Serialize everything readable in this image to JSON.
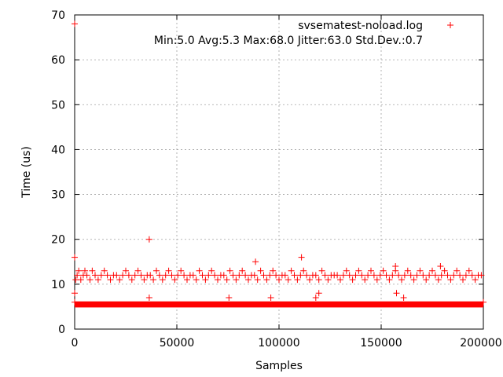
{
  "chart_data": {
    "type": "scatter",
    "xlabel": "Samples",
    "ylabel": "Time (us)",
    "xlim": [
      0,
      200000
    ],
    "ylim": [
      0,
      70
    ],
    "x_ticks": [
      0,
      50000,
      100000,
      150000,
      200000
    ],
    "x_tick_labels": [
      "0",
      "50000",
      "100000",
      "150000",
      "200000"
    ],
    "y_ticks": [
      0,
      10,
      20,
      30,
      40,
      50,
      60,
      70
    ],
    "y_tick_labels": [
      "0",
      "10",
      "20",
      "30",
      "40",
      "50",
      "60",
      "70"
    ],
    "grid": true,
    "legend_position": "top-right",
    "annotation": "Min:5.0 Avg:5.3 Max:68.0 Jitter:63.0 Std.Dev.:0.7",
    "series": [
      {
        "name": "svsematest-noload.log",
        "color": "#ff0000",
        "marker": "plus",
        "dense_band": {
          "x_range": [
            0,
            200000
          ],
          "y_range": [
            5,
            6
          ]
        },
        "cluster_points": [
          [
            500,
            11
          ],
          [
            1200,
            12
          ],
          [
            2000,
            13
          ],
          [
            3000,
            11
          ],
          [
            4200,
            12
          ],
          [
            5000,
            13
          ],
          [
            6000,
            12
          ],
          [
            7500,
            11
          ],
          [
            8600,
            13
          ],
          [
            10000,
            12
          ],
          [
            11500,
            11
          ],
          [
            13000,
            12
          ],
          [
            14500,
            13
          ],
          [
            16000,
            12
          ],
          [
            17500,
            11
          ],
          [
            19000,
            12
          ],
          [
            20500,
            12
          ],
          [
            22000,
            11
          ],
          [
            23500,
            12
          ],
          [
            25000,
            13
          ],
          [
            26500,
            12
          ],
          [
            28000,
            11
          ],
          [
            29500,
            12
          ],
          [
            31000,
            13
          ],
          [
            32500,
            12
          ],
          [
            34000,
            11
          ],
          [
            35500,
            12
          ],
          [
            37000,
            12
          ],
          [
            38500,
            11
          ],
          [
            40000,
            13
          ],
          [
            41500,
            12
          ],
          [
            43000,
            11
          ],
          [
            44500,
            12
          ],
          [
            46000,
            13
          ],
          [
            47500,
            12
          ],
          [
            49000,
            11
          ],
          [
            50500,
            12
          ],
          [
            52000,
            13
          ],
          [
            53500,
            12
          ],
          [
            55000,
            11
          ],
          [
            56500,
            12
          ],
          [
            58000,
            12
          ],
          [
            59500,
            11
          ],
          [
            61000,
            13
          ],
          [
            62500,
            12
          ],
          [
            64000,
            11
          ],
          [
            65500,
            12
          ],
          [
            67000,
            13
          ],
          [
            68500,
            12
          ],
          [
            70000,
            11
          ],
          [
            71500,
            12
          ],
          [
            73000,
            12
          ],
          [
            74500,
            11
          ],
          [
            76000,
            13
          ],
          [
            77500,
            12
          ],
          [
            79000,
            11
          ],
          [
            80500,
            12
          ],
          [
            82000,
            13
          ],
          [
            83500,
            12
          ],
          [
            85000,
            11
          ],
          [
            86500,
            12
          ],
          [
            88000,
            12
          ],
          [
            89500,
            11
          ],
          [
            91000,
            13
          ],
          [
            92500,
            12
          ],
          [
            94000,
            11
          ],
          [
            95500,
            12
          ],
          [
            97000,
            13
          ],
          [
            98500,
            12
          ],
          [
            100000,
            11
          ],
          [
            101500,
            12
          ],
          [
            103000,
            12
          ],
          [
            104500,
            11
          ],
          [
            106000,
            13
          ],
          [
            107500,
            12
          ],
          [
            109000,
            11
          ],
          [
            110500,
            12
          ],
          [
            112000,
            13
          ],
          [
            113500,
            12
          ],
          [
            115000,
            11
          ],
          [
            116500,
            12
          ],
          [
            118000,
            12
          ],
          [
            119500,
            11
          ],
          [
            121000,
            13
          ],
          [
            122500,
            12
          ],
          [
            124000,
            11
          ],
          [
            125500,
            12
          ],
          [
            127000,
            12
          ],
          [
            128500,
            12
          ],
          [
            130000,
            11
          ],
          [
            131500,
            12
          ],
          [
            133000,
            13
          ],
          [
            134500,
            12
          ],
          [
            136000,
            11
          ],
          [
            137500,
            12
          ],
          [
            139000,
            13
          ],
          [
            140500,
            12
          ],
          [
            142000,
            11
          ],
          [
            143500,
            12
          ],
          [
            145000,
            13
          ],
          [
            146500,
            12
          ],
          [
            148000,
            11
          ],
          [
            149500,
            12
          ],
          [
            151000,
            13
          ],
          [
            152500,
            12
          ],
          [
            154000,
            11
          ],
          [
            155500,
            12
          ],
          [
            157000,
            13
          ],
          [
            158500,
            12
          ],
          [
            160000,
            11
          ],
          [
            161500,
            12
          ],
          [
            163000,
            13
          ],
          [
            164500,
            12
          ],
          [
            166000,
            11
          ],
          [
            167500,
            12
          ],
          [
            169000,
            13
          ],
          [
            170500,
            12
          ],
          [
            172000,
            11
          ],
          [
            173500,
            12
          ],
          [
            175000,
            13
          ],
          [
            176500,
            12
          ],
          [
            178000,
            11
          ],
          [
            179500,
            12
          ],
          [
            181000,
            13
          ],
          [
            182500,
            12
          ],
          [
            184000,
            11
          ],
          [
            185500,
            12
          ],
          [
            187000,
            13
          ],
          [
            188500,
            12
          ],
          [
            190000,
            11
          ],
          [
            191500,
            12
          ],
          [
            193000,
            13
          ],
          [
            194500,
            12
          ],
          [
            196000,
            11
          ],
          [
            197500,
            12
          ],
          [
            199000,
            12
          ]
        ],
        "outliers": [
          [
            0,
            68
          ],
          [
            0,
            16
          ],
          [
            0,
            8
          ],
          [
            0,
            6
          ],
          [
            36500,
            20
          ],
          [
            36500,
            7
          ],
          [
            75500,
            7
          ],
          [
            88500,
            15
          ],
          [
            96000,
            7
          ],
          [
            111000,
            16
          ],
          [
            118000,
            7
          ],
          [
            119500,
            8
          ],
          [
            157000,
            14
          ],
          [
            157500,
            8
          ],
          [
            161000,
            7
          ],
          [
            179000,
            14
          ],
          [
            200000,
            6
          ]
        ]
      }
    ]
  }
}
